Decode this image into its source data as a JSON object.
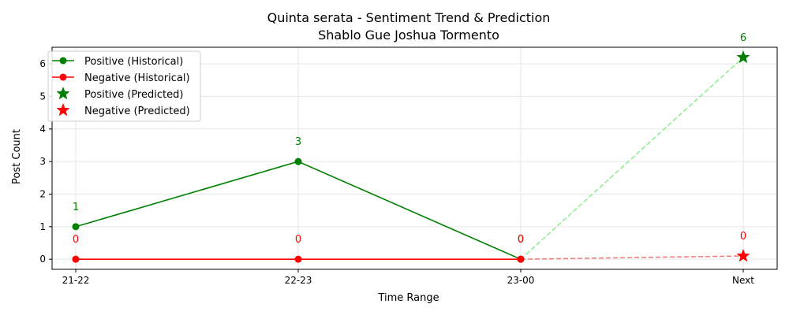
{
  "chart_data": {
    "type": "line",
    "title": "Quinta serata - Sentiment Trend & Prediction",
    "subtitle": "Shablo Gue Joshua Tormento",
    "xlabel": "Time Range",
    "ylabel": "Post Count",
    "categories": [
      "21-22",
      "22-23",
      "23-00",
      "Next"
    ],
    "ylim": [
      -0.31,
      6.51
    ],
    "yticks": [
      0,
      1,
      2,
      3,
      4,
      5,
      6
    ],
    "grid": true,
    "legend_position": "top-left",
    "series": [
      {
        "name": "Positive (Historical)",
        "color": "#008000",
        "marker": "circle",
        "x": [
          "21-22",
          "22-23",
          "23-00"
        ],
        "values": [
          1,
          3,
          0
        ],
        "labels": [
          "1",
          "3",
          "0"
        ]
      },
      {
        "name": "Negative (Historical)",
        "color": "#ff0000",
        "marker": "circle",
        "x": [
          "21-22",
          "22-23",
          "23-00"
        ],
        "values": [
          0,
          0,
          0
        ],
        "labels": [
          "0",
          "0",
          "0"
        ]
      },
      {
        "name": "Positive (Predicted)",
        "color": "#008000",
        "marker": "star",
        "x": [
          "Next"
        ],
        "values": [
          6.2
        ],
        "labels": [
          "6"
        ]
      },
      {
        "name": "Negative (Predicted)",
        "color": "#ff0000",
        "marker": "star",
        "x": [
          "Next"
        ],
        "values": [
          0.1
        ],
        "labels": [
          "0"
        ]
      }
    ],
    "connectors": [
      {
        "color": "#90ee90",
        "from": [
          "23-00",
          0
        ],
        "to": [
          "Next",
          6.2
        ]
      },
      {
        "color": "#f08080",
        "from": [
          "23-00",
          0
        ],
        "to": [
          "Next",
          0.1
        ]
      }
    ]
  }
}
